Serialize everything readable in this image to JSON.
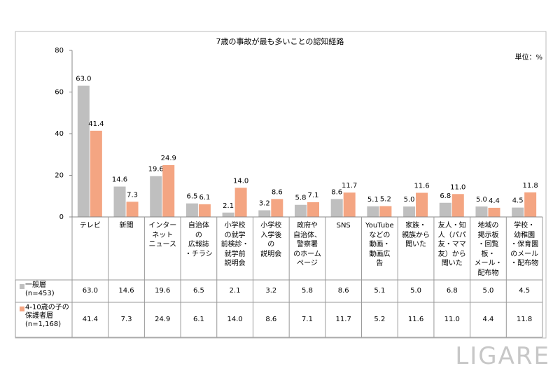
{
  "chart_data": {
    "type": "bar",
    "title": "7歳の事故が最も多いことの認知経路",
    "unit_label": "単位：%",
    "categories": [
      "テレビ",
      "新聞",
      "インター\nネット\nニュース",
      "自治体\nの\n広報誌\n・チラシ",
      "小学校\nの就学\n前検診・\n就学前\n説明会",
      "小学校\n入学後\nの\n説明会",
      "政府や\n自治体、\n警察署\nのホーム\nページ",
      "SNS",
      "YouTube\nなどの\n動画・\n動画広\n告",
      "家族・\n親族から\n聞いた",
      "友人・知\n人（パパ\n友・ママ\n友）から\n聞いた",
      "地域の\n掲示板\n・回覧\n板・\nメール・\n配布物",
      "学校・\n幼稚園\n・保育園\nのメール\n・配布物"
    ],
    "series": [
      {
        "name": "一般層\n(n=453)",
        "color": "#bfbfbf",
        "values": [
          63.0,
          14.6,
          19.6,
          6.5,
          2.1,
          3.2,
          5.8,
          8.6,
          5.1,
          5.0,
          6.8,
          5.0,
          4.5
        ],
        "value_labels": [
          "63.0",
          "14.6",
          "19.6",
          "6.5",
          "2.1",
          "3.2",
          "5.8",
          "8.6",
          "5.1",
          "5.0",
          "6.8",
          "5.0",
          "4.5"
        ]
      },
      {
        "name": "4-10歳の子の\n保護者層\n(n=1,168)",
        "color": "#f4a582",
        "values": [
          41.4,
          7.3,
          24.9,
          6.1,
          14.0,
          8.6,
          7.1,
          11.7,
          5.2,
          11.6,
          11.0,
          4.4,
          11.8
        ],
        "value_labels": [
          "41.4",
          "7.3",
          "24.9",
          "6.1",
          "14.0",
          "8.6",
          "7.1",
          "11.7",
          "5.2",
          "11.6",
          "11.0",
          "4.4",
          "11.8"
        ]
      }
    ],
    "ylim": [
      0,
      80
    ],
    "yticks": [
      0,
      20,
      40,
      60,
      80
    ],
    "grid": false
  },
  "watermark": "LIGARE"
}
